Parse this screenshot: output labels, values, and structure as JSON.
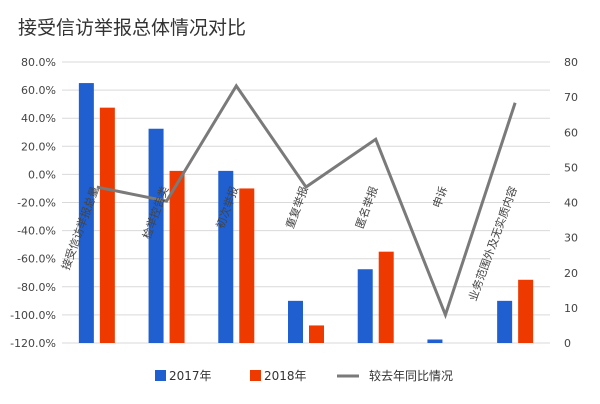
{
  "chart_data": {
    "type": "bar",
    "title": "接受信访举报总体情况对比",
    "categories": [
      "接受信访举报总量",
      "检举控告类",
      "初次举报",
      "重复举报",
      "匿名举报",
      "申诉",
      "业务范围外及无实质内容"
    ],
    "series": [
      {
        "name": "2017年",
        "type": "bar",
        "axis": "right",
        "color": "#1f5fcf",
        "values": [
          74,
          61,
          49,
          12,
          21,
          1,
          12
        ]
      },
      {
        "name": "2018年",
        "type": "bar",
        "axis": "right",
        "color": "#ee3a00",
        "values": [
          67,
          49,
          44,
          5,
          26,
          0,
          18
        ]
      },
      {
        "name": "较去年同比情况",
        "type": "line",
        "axis": "left",
        "color": "#7a7a7a",
        "values": [
          -9,
          -19,
          63,
          -9,
          25,
          -100,
          51
        ]
      }
    ],
    "left_axis": {
      "range": [
        -120,
        80
      ],
      "ticks": [
        "-120.0%",
        "-100.0%",
        "-80.0%",
        "-60.0%",
        "-40.0%",
        "-20.0%",
        "0.0%",
        "20.0%",
        "40.0%",
        "60.0%",
        "80.0%"
      ]
    },
    "right_axis": {
      "range": [
        0,
        80
      ],
      "ticks": [
        "0",
        "10",
        "20",
        "30",
        "40",
        "50",
        "60",
        "70",
        "80"
      ]
    },
    "grid": true,
    "legend": "bottom"
  }
}
